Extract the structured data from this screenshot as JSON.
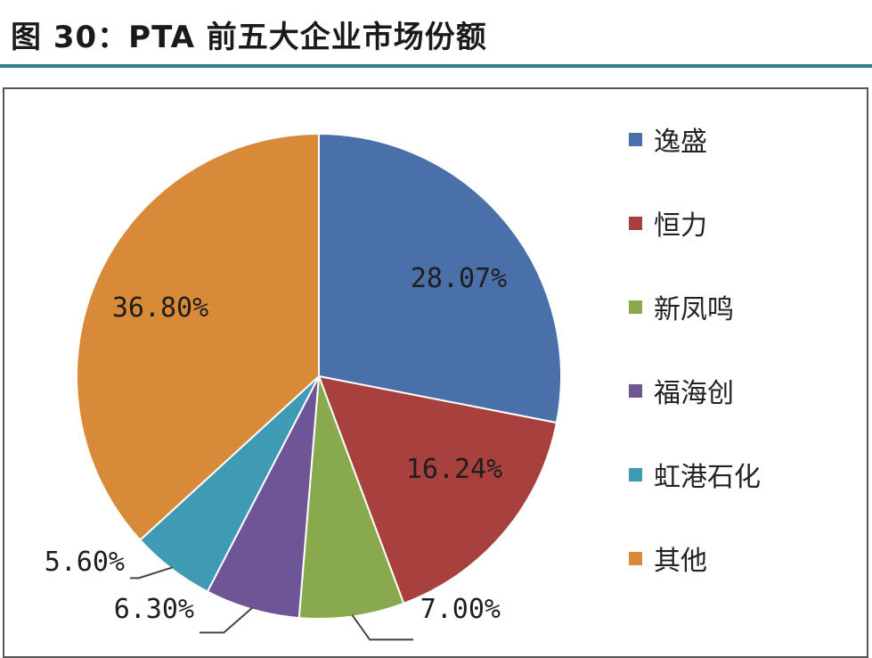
{
  "title": "图 30：PTA 前五大企业市场份额",
  "colors": {
    "rule": "#2f7f86"
  },
  "chart_data": {
    "type": "pie",
    "title": "",
    "categories": [
      "逸盛",
      "恒力",
      "新凤鸣",
      "福海创",
      "虹港石化",
      "其他"
    ],
    "values": [
      28.07,
      16.24,
      7.0,
      6.3,
      5.6,
      36.8
    ],
    "labels": [
      "28.07%",
      "16.24%",
      "7.00%",
      "6.30%",
      "5.60%",
      "36.80%"
    ],
    "colors": [
      "#4a70aa",
      "#a8403e",
      "#88aa4c",
      "#6e5595",
      "#3f9ab3",
      "#d98a39"
    ],
    "legend_position": "right"
  }
}
